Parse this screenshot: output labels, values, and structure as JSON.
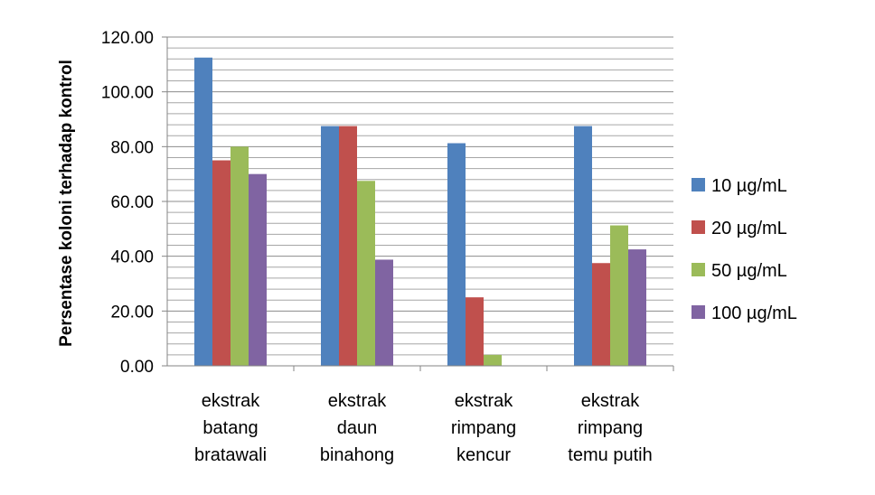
{
  "chart_data": {
    "type": "bar",
    "title": "",
    "xlabel": "",
    "ylabel": "Persentase koloni terhadap kontrol",
    "ylim": [
      0,
      120
    ],
    "ytick_step": 20,
    "minor_grid_step": 4,
    "grid": true,
    "legend_position": "right",
    "categories": [
      [
        "ekstrak",
        "batang",
        "bratawali"
      ],
      [
        "ekstrak",
        "daun",
        "binahong"
      ],
      [
        "ekstrak",
        "rimpang",
        "kencur"
      ],
      [
        "ekstrak",
        "rimpang",
        "temu putih"
      ]
    ],
    "series": [
      {
        "name": "10 µg/mL",
        "color": "#4F81BD",
        "values": [
          112.5,
          87.5,
          81.25,
          87.5
        ]
      },
      {
        "name": "20 µg/mL",
        "color": "#C0504D",
        "values": [
          75.0,
          87.5,
          25.0,
          37.5
        ]
      },
      {
        "name": "50 µg/mL",
        "color": "#9BBB59",
        "values": [
          80.0,
          67.5,
          4.0,
          51.25
        ]
      },
      {
        "name": "100 µg/mL",
        "color": "#8064A2",
        "values": [
          70.0,
          38.75,
          0,
          42.5
        ]
      }
    ]
  }
}
